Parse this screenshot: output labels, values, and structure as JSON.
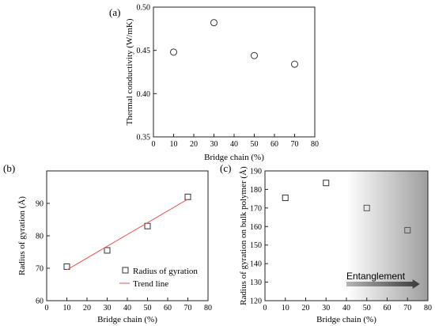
{
  "chart_data": [
    {
      "type": "scatter",
      "panel_label": "(a)",
      "xlabel": "Bridge chain (%)",
      "ylabel": "Thermal conductivity (W/mK)",
      "xlim": [
        0,
        80
      ],
      "ylim": [
        0.35,
        0.5
      ],
      "xticks": [
        "0",
        "10",
        "20",
        "30",
        "40",
        "50",
        "60",
        "70",
        "80"
      ],
      "yticks": [
        "0.35",
        "0.40",
        "0.45",
        "0.50"
      ],
      "marker": "circle",
      "grid": false,
      "series": [
        {
          "x": [
            10,
            30,
            50,
            70
          ],
          "y": [
            0.448,
            0.482,
            0.444,
            0.434
          ]
        }
      ]
    },
    {
      "type": "scatter",
      "panel_label": "(b)",
      "xlabel": "Bridge chain (%)",
      "ylabel": "Radius of gyration (Å)",
      "xlim": [
        0,
        80
      ],
      "ylim": [
        60,
        100
      ],
      "xticks": [
        "0",
        "10",
        "20",
        "30",
        "40",
        "50",
        "60",
        "70",
        "80"
      ],
      "yticks": [
        "60",
        "70",
        "80",
        "90"
      ],
      "marker": "square",
      "grid": false,
      "legend_position": "bottom-right",
      "series": [
        {
          "name": "Radius of gyration",
          "x": [
            10,
            30,
            50,
            70
          ],
          "y": [
            70.5,
            75.5,
            83.0,
            92.0
          ]
        },
        {
          "name": "Trend line",
          "kind": "line",
          "color": "#e8564f",
          "x": [
            10,
            70
          ],
          "y": [
            69.5,
            91.3
          ]
        }
      ]
    },
    {
      "type": "scatter",
      "panel_label": "(c)",
      "xlabel": "Bridge chain (%)",
      "ylabel": "Radius of gyration on bulk polymer (Å)",
      "xlim": [
        0,
        80
      ],
      "ylim": [
        120,
        190
      ],
      "xticks": [
        "0",
        "10",
        "20",
        "30",
        "40",
        "50",
        "60",
        "70",
        "80"
      ],
      "yticks": [
        "120",
        "130",
        "140",
        "150",
        "160",
        "170",
        "180",
        "190"
      ],
      "marker": "square",
      "grid": false,
      "series": [
        {
          "x": [
            10,
            30,
            50,
            70
          ],
          "y": [
            175.5,
            183.5,
            170.0,
            158.0
          ]
        }
      ],
      "shaded_region": {
        "x_start": 40,
        "x_end": 80
      },
      "annotation": {
        "text": "Entanglement",
        "arrow_from_x": 40,
        "arrow_to_x": 76
      }
    }
  ]
}
